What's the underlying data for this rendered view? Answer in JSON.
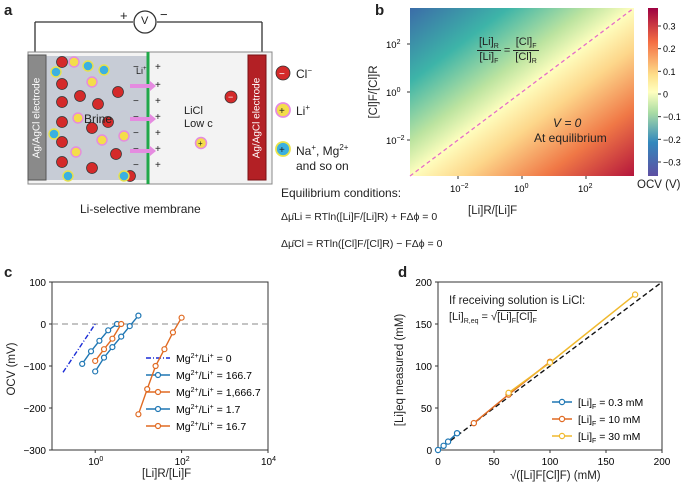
{
  "panels": {
    "a": {
      "label": "a",
      "voltmeter": "V",
      "plus": "+",
      "minus": "−",
      "left_electrode": "Ag/AgCl electrode",
      "right_electrode": "Ag/AgCl electrode",
      "brine": "Brine",
      "licl_line1": "LiCl",
      "licl_line2": "Low c",
      "li_plus_arrow": "Li",
      "membrane_caption": "Li-selective membrane",
      "legend": [
        {
          "ion": "Cl−",
          "color": "#d42a2a",
          "symbol": "−"
        },
        {
          "ion": "Li+",
          "color": "#f4dd4a",
          "symbol": "+"
        },
        {
          "ion": "Na+, Mg2+ and so on",
          "color": "#3bb0e0",
          "symbol": "+"
        }
      ],
      "legend_text": {
        "cl": "Cl",
        "li": "Li",
        "na_line1": "Na",
        "na_mg": ", Mg",
        "na_line2": "and so on"
      },
      "equilibrium_title": "Equilibrium conditions:",
      "eq1": "Δμ̄Li = RTln([Li]F/[Li]R) + FΔϕ = 0",
      "eq2": "Δμ̄Cl = RTln([Cl]F/[Cl]R) − FΔϕ = 0"
    },
    "b": {
      "label": "b",
      "xlabel": "[Li]R/[Li]F",
      "ylabel": "[Cl]F/[Cl]R",
      "colorbar_label": "OCV (V)",
      "annotation_v": "V = 0",
      "annotation_eq": "At equilibrium",
      "colorbar_ticks": [
        "0.3",
        "0.2",
        "0.1",
        "0",
        "−0.1",
        "−0.2",
        "−0.3"
      ]
    },
    "c": {
      "label": "c"
    },
    "d": {
      "label": "d",
      "annotation": "If receiving solution is LiCl:"
    }
  },
  "chart_data": [
    {
      "id": "b",
      "type": "heatmap",
      "title": "",
      "xlabel": "[Li]R/[Li]F",
      "ylabel": "[Cl]F/[Cl]R",
      "x_scale": "log",
      "y_scale": "log",
      "xlim_log10": [
        -3.5,
        3.5
      ],
      "ylim_log10": [
        -3.5,
        3.5
      ],
      "xticks": [
        "10",
        "10",
        "10"
      ],
      "xtick_exponents": [
        "−2",
        "0",
        "2"
      ],
      "yticks": [
        "10",
        "10",
        "10"
      ],
      "ytick_exponents": [
        "−2",
        "0",
        "2"
      ],
      "color_range": [
        -0.35,
        0.35
      ],
      "equilibrium_line": "[Li]R/[Li]F = [Cl]F/[Cl]R"
    },
    {
      "id": "c",
      "type": "line",
      "xlabel": "[Li]R/[Li]F",
      "ylabel": "OCV (mV)",
      "x_scale": "log",
      "ylim": [
        -300,
        100
      ],
      "yticks": [
        "100",
        "0",
        "−100",
        "−200",
        "−300"
      ],
      "xticks": [
        "10",
        "10",
        "10"
      ],
      "xtick_exponents": [
        "0",
        "2",
        "4"
      ],
      "reference_line": 0,
      "series": [
        {
          "name": "Mg2+/Li+ = 0",
          "label": "Mg",
          "ratio": " = 0",
          "color": "#1a2bd6",
          "style": "dashdot",
          "x": [
            0.18,
            1.0
          ],
          "y": [
            -115,
            0
          ]
        },
        {
          "name": "Mg2+/Li+ = 166.7",
          "label": "Mg",
          "ratio": " = 166.7",
          "color": "#1f77b4",
          "x": [
            1.0,
            1.6,
            2.5,
            4.0,
            6.3,
            10
          ],
          "y": [
            -113,
            -80,
            -55,
            -30,
            -5,
            20
          ]
        },
        {
          "name": "Mg2+/Li+ = 1,666.7",
          "label": "Mg",
          "ratio": " = 1,666.7",
          "color": "#e06a22",
          "x": [
            10,
            16,
            25,
            40,
            63,
            100
          ],
          "y": [
            -215,
            -155,
            -100,
            -60,
            -20,
            15
          ]
        },
        {
          "name": "Mg2+/Li+ = 1.7",
          "label": "Mg",
          "ratio": " = 1.7",
          "color": "#1f77b4",
          "x": [
            0.5,
            0.8,
            1.25,
            2.0,
            3.2
          ],
          "y": [
            -95,
            -65,
            -40,
            -15,
            0
          ]
        },
        {
          "name": "Mg2+/Li+ = 16.7",
          "label": "Mg",
          "ratio": " = 16.7",
          "color": "#e06a22",
          "x": [
            1.0,
            1.6,
            2.5,
            4.0
          ],
          "y": [
            -88,
            -60,
            -35,
            0
          ]
        }
      ]
    },
    {
      "id": "d",
      "type": "scatter",
      "xlabel": "√([Li]F[Cl]F) (mM)",
      "ylabel": "[Li]eq measured (mM)",
      "xlim": [
        0,
        200
      ],
      "ylim": [
        0,
        200
      ],
      "xticks": [
        "0",
        "50",
        "100",
        "150",
        "200"
      ],
      "yticks": [
        "0",
        "50",
        "100",
        "150",
        "200"
      ],
      "reference_line": "y = x",
      "series": [
        {
          "name": "[Li]F = 0.3 mM",
          "value": " = 0.3 mM",
          "color": "#1f77b4",
          "x": [
            0,
            5,
            9,
            17
          ],
          "y": [
            0,
            5,
            10,
            20
          ]
        },
        {
          "name": "[Li]F = 10 mM",
          "value": " = 10 mM",
          "color": "#e06a22",
          "x": [
            32,
            63,
            100
          ],
          "y": [
            32,
            66,
            105
          ]
        },
        {
          "name": "[Li]F = 30 mM",
          "value": " = 30 mM",
          "color": "#f0b92e",
          "x": [
            63,
            100,
            176
          ],
          "y": [
            68,
            104,
            185
          ]
        }
      ]
    }
  ]
}
